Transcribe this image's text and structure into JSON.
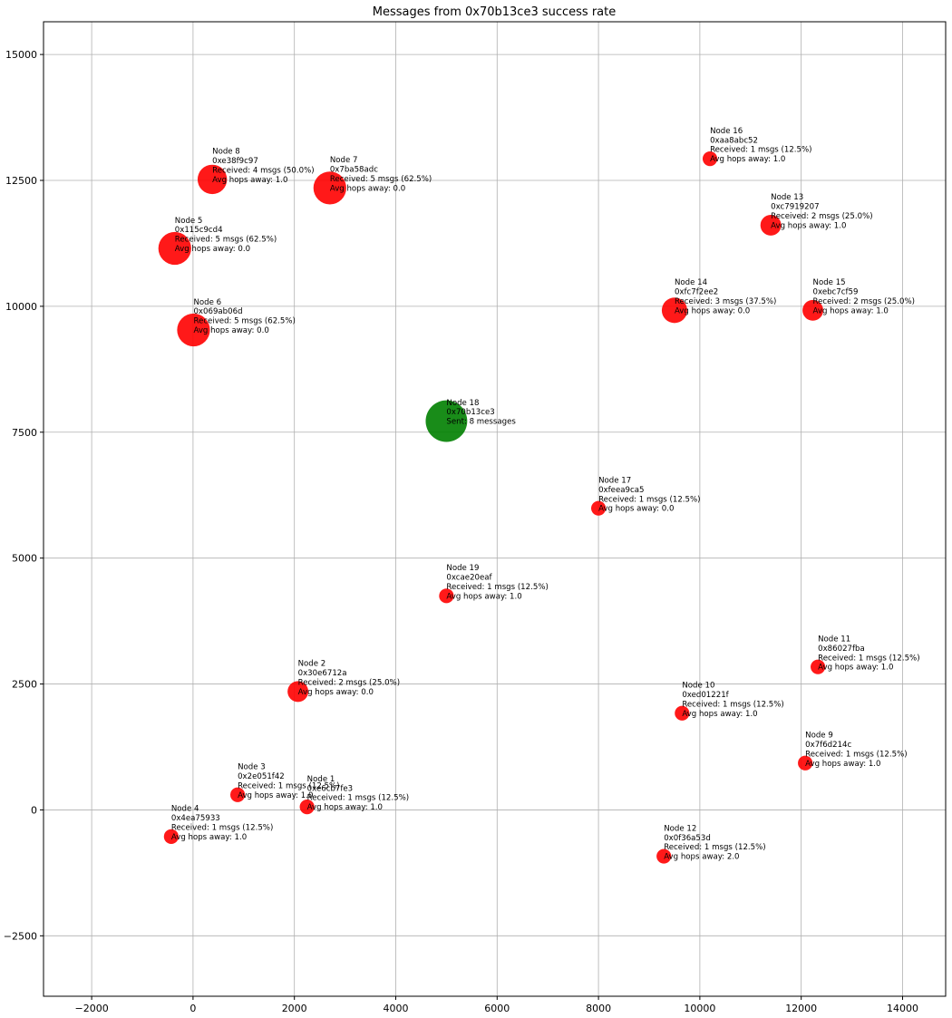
{
  "chart_data": {
    "type": "scatter",
    "title": "Messages from 0x70b13ce3 success rate",
    "xlabel": "",
    "ylabel": "",
    "xlim": [
      -2950,
      14850
    ],
    "ylim": [
      -3700,
      15650
    ],
    "xticks": [
      -2000,
      0,
      2000,
      4000,
      6000,
      8000,
      10000,
      12000,
      14000
    ],
    "yticks": [
      -2500,
      0,
      2500,
      5000,
      7500,
      10000,
      12500,
      15000
    ],
    "xtick_labels": [
      "−2000",
      "0",
      "2000",
      "4000",
      "6000",
      "8000",
      "10000",
      "12000",
      "14000"
    ],
    "ytick_labels": [
      "−2500",
      "0",
      "2500",
      "5000",
      "7500",
      "10000",
      "12500",
      "15000"
    ],
    "grid": true,
    "colors": {
      "received": "#ff0000",
      "sender": "#008000"
    },
    "points": [
      {
        "x": 2250,
        "y": 60,
        "role": "received",
        "msgs": 1,
        "lines": [
          "Node 1",
          "0xe6cb7fe3",
          "Received: 1 msgs (12.5%)",
          "Avg hops away: 1.0"
        ]
      },
      {
        "x": 2070,
        "y": 2350,
        "role": "received",
        "msgs": 2,
        "lines": [
          "Node 2",
          "0x30e6712a",
          "Received: 2 msgs (25.0%)",
          "Avg hops away: 0.0"
        ]
      },
      {
        "x": 880,
        "y": 300,
        "role": "received",
        "msgs": 1,
        "lines": [
          "Node 3",
          "0x2e051f42",
          "Received: 1 msgs (12.5%)",
          "Avg hops away: 1.0"
        ]
      },
      {
        "x": -430,
        "y": -530,
        "role": "received",
        "msgs": 1,
        "lines": [
          "Node 4",
          "0x4ea75933",
          "Received: 1 msgs (12.5%)",
          "Avg hops away: 1.0"
        ]
      },
      {
        "x": -360,
        "y": 11150,
        "role": "received",
        "msgs": 5,
        "lines": [
          "Node 5",
          "0x115c9cd4",
          "Received: 5 msgs (62.5%)",
          "Avg hops away: 0.0"
        ]
      },
      {
        "x": 10,
        "y": 9530,
        "role": "received",
        "msgs": 5,
        "lines": [
          "Node 6",
          "0x069ab06d",
          "Received: 5 msgs (62.5%)",
          "Avg hops away: 0.0"
        ]
      },
      {
        "x": 2700,
        "y": 12350,
        "role": "received",
        "msgs": 5,
        "lines": [
          "Node 7",
          "0x7ba58adc",
          "Received: 5 msgs (62.5%)",
          "Avg hops away: 0.0"
        ]
      },
      {
        "x": 380,
        "y": 12520,
        "role": "received",
        "msgs": 4,
        "lines": [
          "Node 8",
          "0xe38f9c97",
          "Received: 4 msgs (50.0%)",
          "Avg hops away: 1.0"
        ]
      },
      {
        "x": 12080,
        "y": 930,
        "role": "received",
        "msgs": 1,
        "lines": [
          "Node 9",
          "0x7f6d214c",
          "Received: 1 msgs (12.5%)",
          "Avg hops away: 1.0"
        ]
      },
      {
        "x": 9650,
        "y": 1920,
        "role": "received",
        "msgs": 1,
        "lines": [
          "Node 10",
          "0xed01221f",
          "Received: 1 msgs (12.5%)",
          "Avg hops away: 1.0"
        ]
      },
      {
        "x": 12330,
        "y": 2840,
        "role": "received",
        "msgs": 1,
        "lines": [
          "Node 11",
          "0x86027fba",
          "Received: 1 msgs (12.5%)",
          "Avg hops away: 1.0"
        ]
      },
      {
        "x": 9290,
        "y": -920,
        "role": "received",
        "msgs": 1,
        "lines": [
          "Node 12",
          "0x0f36a53d",
          "Received: 1 msgs (12.5%)",
          "Avg hops away: 2.0"
        ]
      },
      {
        "x": 11400,
        "y": 11610,
        "role": "received",
        "msgs": 2,
        "lines": [
          "Node 13",
          "0xc7919207",
          "Received: 2 msgs (25.0%)",
          "Avg hops away: 1.0"
        ]
      },
      {
        "x": 9500,
        "y": 9920,
        "role": "received",
        "msgs": 3,
        "lines": [
          "Node 14",
          "0xfc7f2ee2",
          "Received: 3 msgs (37.5%)",
          "Avg hops away: 0.0"
        ]
      },
      {
        "x": 12230,
        "y": 9920,
        "role": "received",
        "msgs": 2,
        "lines": [
          "Node 15",
          "0xebc7cf59",
          "Received: 2 msgs (25.0%)",
          "Avg hops away: 1.0"
        ]
      },
      {
        "x": 10200,
        "y": 12930,
        "role": "received",
        "msgs": 1,
        "lines": [
          "Node 16",
          "0xaa8abc52",
          "Received: 1 msgs (12.5%)",
          "Avg hops away: 1.0"
        ]
      },
      {
        "x": 8000,
        "y": 5990,
        "role": "received",
        "msgs": 1,
        "lines": [
          "Node 17",
          "0xfeea9ca5",
          "Received: 1 msgs (12.5%)",
          "Avg hops away: 0.0"
        ]
      },
      {
        "x": 5000,
        "y": 7720,
        "role": "sender",
        "msgs": 8,
        "lines": [
          "Node 18",
          "0x70b13ce3",
          "Sent: 8 messages"
        ]
      },
      {
        "x": 5000,
        "y": 4250,
        "role": "received",
        "msgs": 1,
        "lines": [
          "Node 19",
          "0xcae20eaf",
          "Received: 1 msgs (12.5%)",
          "Avg hops away: 1.0"
        ]
      }
    ]
  }
}
